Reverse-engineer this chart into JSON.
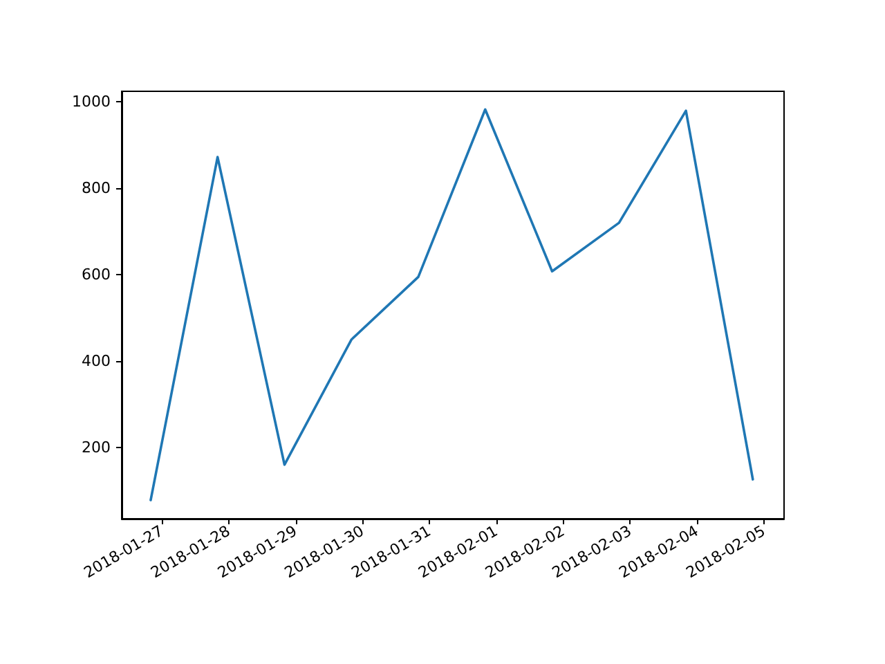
{
  "chart_data": {
    "type": "line",
    "x": [
      "2018-01-26T20:00",
      "2018-01-27T20:00",
      "2018-01-28T20:00",
      "2018-01-29T20:00",
      "2018-01-30T20:00",
      "2018-01-31T20:00",
      "2018-02-01T20:00",
      "2018-02-02T20:00",
      "2018-02-03T20:00",
      "2018-02-04T20:00"
    ],
    "series": [
      {
        "color": "#1f77b4",
        "values": [
          79,
          872,
          161,
          450,
          595,
          982,
          608,
          720,
          979,
          127
        ]
      }
    ],
    "xlim": [
      "2018-01-26T09:36",
      "2018-02-05T07:12"
    ],
    "xticks": [
      "2018-01-27",
      "2018-01-28",
      "2018-01-29",
      "2018-01-30",
      "2018-01-31",
      "2018-02-01",
      "2018-02-02",
      "2018-02-03",
      "2018-02-04",
      "2018-02-05"
    ],
    "ylim": [
      36,
      1024
    ],
    "yticks": [
      200,
      400,
      600,
      800,
      1000
    ],
    "grid": false,
    "marker": "none",
    "line_style": "solid"
  }
}
